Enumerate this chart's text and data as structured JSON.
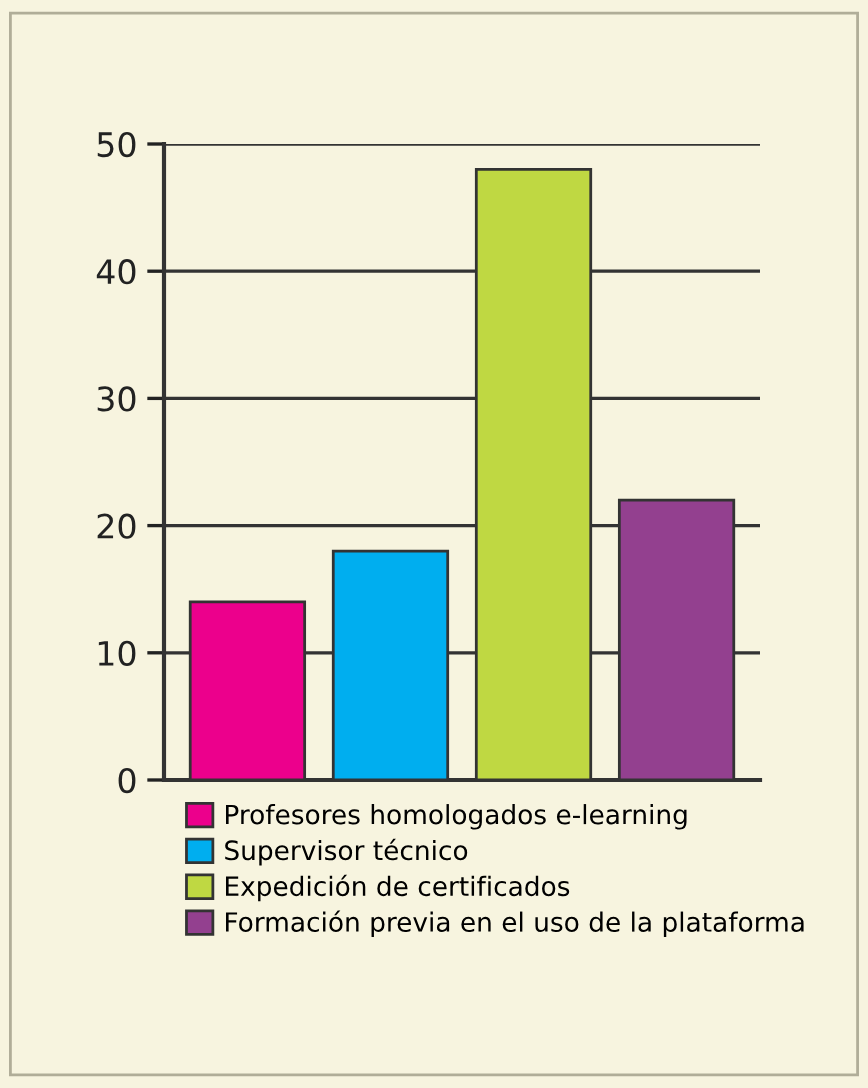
{
  "chart_data": {
    "type": "bar",
    "categories": [
      null
    ],
    "series": [
      {
        "name": "Profesores homologados e-learning",
        "color": "#ec008c",
        "values": [
          14
        ]
      },
      {
        "name": "Supervisor técnico",
        "color": "#00aeef",
        "values": [
          18
        ]
      },
      {
        "name": "Expedición de certificados",
        "color": "#bfd842",
        "values": [
          48
        ]
      },
      {
        "name": "Formación previa en el uso de la plataforma",
        "color": "#93408f",
        "values": [
          22
        ]
      }
    ],
    "ylim": [
      0,
      50
    ],
    "yticks": [
      0,
      10,
      20,
      30,
      40,
      50
    ],
    "grid": "y",
    "legend": "bottom"
  }
}
